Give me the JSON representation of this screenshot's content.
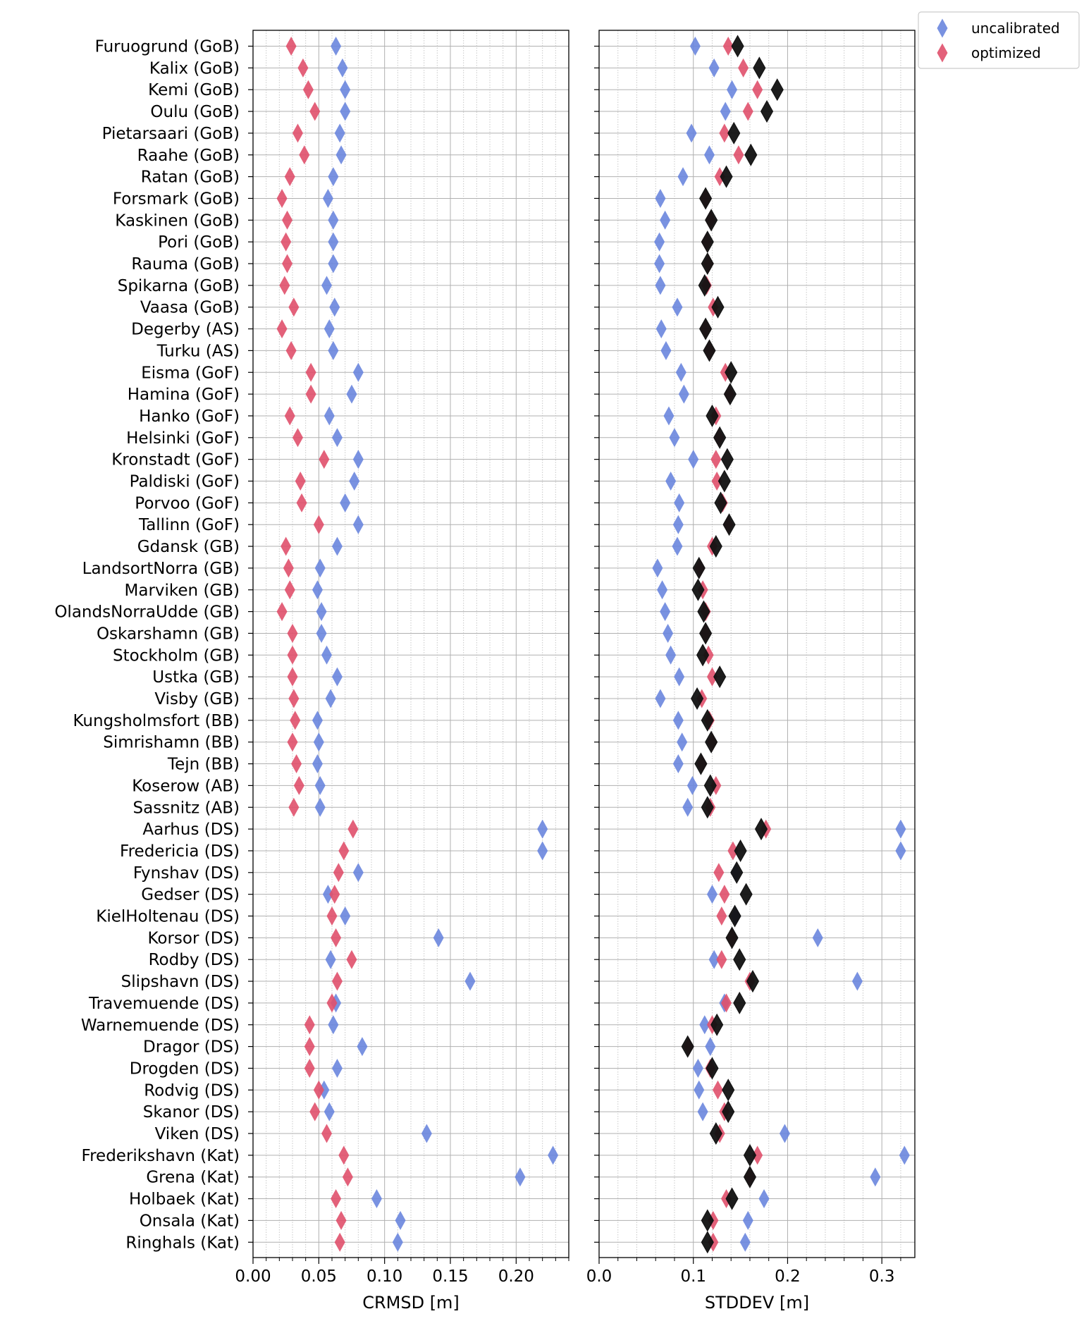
{
  "colors": {
    "uncalibrated": "#6a86de",
    "optimized": "#e0506c",
    "observed": "#111111"
  },
  "chart_data": [
    {
      "type": "scatter",
      "xlabel": "CRMSD [m]",
      "xlim": [
        0,
        0.24
      ],
      "xticks": [
        "0.00",
        "0.05",
        "0.10",
        "0.15",
        "0.20"
      ],
      "xtick_values": [
        0,
        0.05,
        0.1,
        0.15,
        0.2
      ],
      "grid": true,
      "series": [
        {
          "name": "uncalibrated",
          "values": [
            0.063,
            0.068,
            0.07,
            0.07,
            0.066,
            0.067,
            0.061,
            0.057,
            0.061,
            0.061,
            0.061,
            0.056,
            0.062,
            0.058,
            0.061,
            0.08,
            0.075,
            0.058,
            0.064,
            0.08,
            0.077,
            0.07,
            0.08,
            0.064,
            0.051,
            0.049,
            0.052,
            0.052,
            0.056,
            0.064,
            0.059,
            0.049,
            0.05,
            0.049,
            0.051,
            0.051,
            0.22,
            0.22,
            0.08,
            0.057,
            0.07,
            0.141,
            0.059,
            0.165,
            0.063,
            0.061,
            0.083,
            0.064,
            0.054,
            0.058,
            0.132,
            0.228,
            0.203,
            0.094,
            0.112,
            0.11
          ]
        },
        {
          "name": "optimized",
          "values": [
            0.029,
            0.038,
            0.042,
            0.047,
            0.034,
            0.039,
            0.028,
            0.022,
            0.026,
            0.025,
            0.026,
            0.024,
            0.031,
            0.022,
            0.029,
            0.044,
            0.044,
            0.028,
            0.034,
            0.054,
            0.036,
            0.037,
            0.05,
            0.025,
            0.027,
            0.028,
            0.022,
            0.03,
            0.03,
            0.03,
            0.031,
            0.032,
            0.03,
            0.033,
            0.035,
            0.031,
            0.076,
            0.069,
            0.065,
            0.062,
            0.06,
            0.063,
            0.075,
            0.064,
            0.06,
            0.043,
            0.043,
            0.043,
            0.05,
            0.047,
            0.056,
            0.069,
            0.072,
            0.063,
            0.067,
            0.066
          ]
        }
      ]
    },
    {
      "type": "scatter",
      "xlabel": "STDDEV [m]",
      "xlim": [
        0,
        0.335
      ],
      "xticks": [
        "0.0",
        "0.1",
        "0.2",
        "0.3"
      ],
      "xtick_values": [
        0,
        0.1,
        0.2,
        0.3
      ],
      "grid": true,
      "series": [
        {
          "name": "uncalibrated",
          "values": [
            0.102,
            0.122,
            0.141,
            0.134,
            0.098,
            0.117,
            0.089,
            0.065,
            0.07,
            0.064,
            0.064,
            0.065,
            0.083,
            0.066,
            0.071,
            0.087,
            0.09,
            0.074,
            0.08,
            0.1,
            0.076,
            0.085,
            0.084,
            0.083,
            0.062,
            0.067,
            0.07,
            0.073,
            0.076,
            0.085,
            0.065,
            0.084,
            0.088,
            0.084,
            0.099,
            0.094,
            0.32,
            0.32,
            0.145,
            0.12,
            0.145,
            0.232,
            0.122,
            0.274,
            0.133,
            0.112,
            0.118,
            0.105,
            0.106,
            0.11,
            0.197,
            0.324,
            0.293,
            0.175,
            0.158,
            0.155
          ]
        },
        {
          "name": "optimized",
          "values": [
            0.137,
            0.153,
            0.168,
            0.158,
            0.133,
            0.148,
            0.128,
            0.113,
            0.118,
            0.114,
            0.116,
            0.114,
            0.121,
            0.113,
            0.117,
            0.134,
            0.138,
            0.124,
            0.127,
            0.124,
            0.125,
            0.131,
            0.137,
            0.12,
            0.107,
            0.11,
            0.113,
            0.113,
            0.116,
            0.12,
            0.109,
            0.117,
            0.12,
            0.109,
            0.124,
            0.118,
            0.177,
            0.142,
            0.127,
            0.133,
            0.13,
            0.141,
            0.13,
            0.16,
            0.135,
            0.12,
            0.095,
            0.118,
            0.126,
            0.133,
            0.128,
            0.168,
            0.16,
            0.135,
            0.121,
            0.121
          ]
        },
        {
          "name": "",
          "values": [
            0.147,
            0.17,
            0.189,
            0.178,
            0.143,
            0.161,
            0.135,
            0.113,
            0.119,
            0.115,
            0.115,
            0.112,
            0.126,
            0.113,
            0.117,
            0.14,
            0.139,
            0.12,
            0.128,
            0.136,
            0.133,
            0.129,
            0.138,
            0.124,
            0.106,
            0.105,
            0.111,
            0.113,
            0.11,
            0.128,
            0.104,
            0.115,
            0.119,
            0.108,
            0.118,
            0.115,
            0.172,
            0.15,
            0.146,
            0.156,
            0.144,
            0.141,
            0.149,
            0.163,
            0.149,
            0.125,
            0.094,
            0.12,
            0.137,
            0.137,
            0.124,
            0.16,
            0.16,
            0.141,
            0.115,
            0.115
          ]
        }
      ]
    }
  ],
  "stations": [
    "Furuogrund (GoB)",
    "Kalix (GoB)",
    "Kemi (GoB)",
    "Oulu (GoB)",
    "Pietarsaari (GoB)",
    "Raahe (GoB)",
    "Ratan (GoB)",
    "Forsmark (GoB)",
    "Kaskinen (GoB)",
    "Pori (GoB)",
    "Rauma (GoB)",
    "Spikarna (GoB)",
    "Vaasa (GoB)",
    "Degerby (AS)",
    "Turku (AS)",
    "Eisma (GoF)",
    "Hamina (GoF)",
    "Hanko (GoF)",
    "Helsinki (GoF)",
    "Kronstadt (GoF)",
    "Paldiski (GoF)",
    "Porvoo (GoF)",
    "Tallinn (GoF)",
    "Gdansk (GB)",
    "LandsortNorra (GB)",
    "Marviken (GB)",
    "OlandsNorraUdde (GB)",
    "Oskarshamn (GB)",
    "Stockholm (GB)",
    "Ustka (GB)",
    "Visby (GB)",
    "Kungsholmsfort (BB)",
    "Simrishamn (BB)",
    "Tejn (BB)",
    "Koserow (AB)",
    "Sassnitz (AB)",
    "Aarhus (DS)",
    "Fredericia (DS)",
    "Fynshav (DS)",
    "Gedser (DS)",
    "KielHoltenau (DS)",
    "Korsor (DS)",
    "Rodby (DS)",
    "Slipshavn (DS)",
    "Travemuende (DS)",
    "Warnemuende (DS)",
    "Dragor (DS)",
    "Drogden (DS)",
    "Rodvig (DS)",
    "Skanor (DS)",
    "Viken (DS)",
    "Frederikshavn (Kat)",
    "Grena (Kat)",
    "Holbaek (Kat)",
    "Onsala (Kat)",
    "Ringhals (Kat)"
  ],
  "legend": {
    "placement": "top-right",
    "entries": [
      {
        "label": "uncalibrated",
        "color_key": "uncalibrated"
      },
      {
        "label": "optimized",
        "color_key": "optimized"
      }
    ]
  }
}
